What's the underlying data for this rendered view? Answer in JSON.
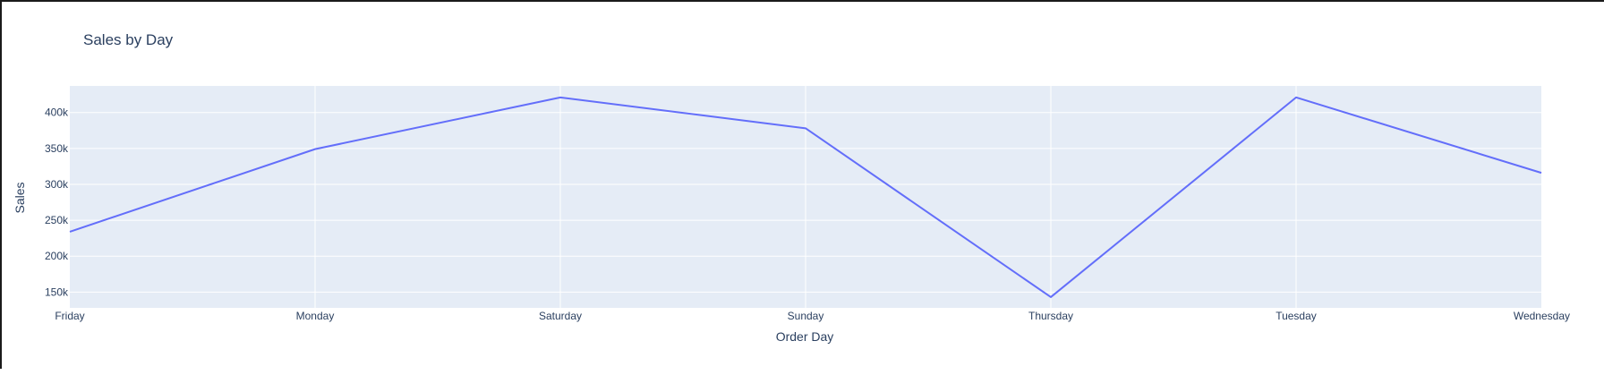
{
  "chart_data": {
    "type": "line",
    "title": "Sales by Day",
    "xlabel": "Order Day",
    "ylabel": "Sales",
    "categories": [
      "Friday",
      "Monday",
      "Saturday",
      "Sunday",
      "Thursday",
      "Tuesday",
      "Wednesday"
    ],
    "series": [
      {
        "values": [
          234000,
          349000,
          421000,
          378000,
          143000,
          421000,
          316000
        ]
      }
    ],
    "ylim": [
      128000,
      437000
    ],
    "yticks": [
      150000,
      200000,
      250000,
      300000,
      350000,
      400000
    ],
    "ytick_labels": [
      "150k",
      "200k",
      "250k",
      "300k",
      "350k",
      "400k"
    ],
    "grid": true,
    "colors": {
      "line": "#636efa",
      "plot_bg": "#e5ecf6",
      "grid": "#ffffff",
      "text": "#2a3f5f"
    }
  }
}
